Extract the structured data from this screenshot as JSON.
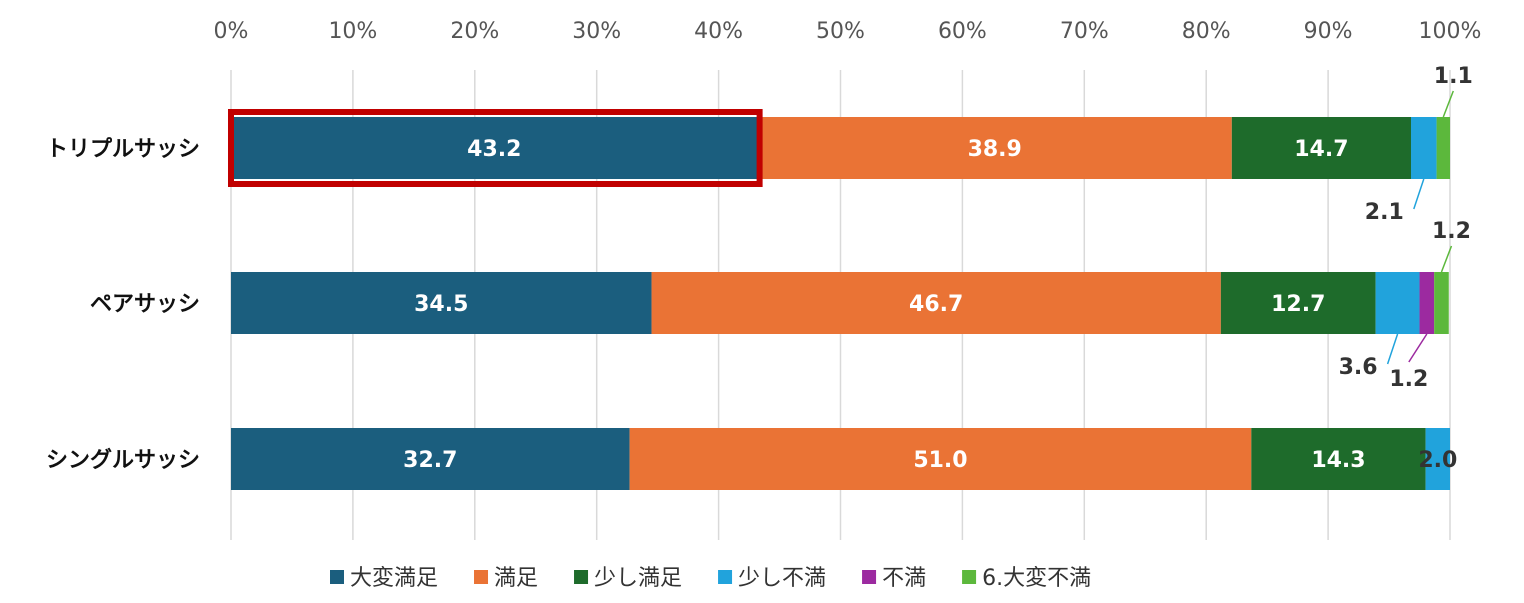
{
  "chart_data": {
    "type": "bar",
    "orientation": "horizontal",
    "stacked": true,
    "categories": [
      "トリプルサッシ",
      "ペアサッシ",
      "シングルサッシ"
    ],
    "xlim": [
      0,
      100
    ],
    "x_ticks": [
      "0%",
      "10%",
      "20%",
      "30%",
      "40%",
      "50%",
      "60%",
      "70%",
      "80%",
      "90%",
      "100%"
    ],
    "x_tick_values": [
      0,
      10,
      20,
      30,
      40,
      50,
      60,
      70,
      80,
      90,
      100
    ],
    "grid": true,
    "legend_position": "bottom",
    "series": [
      {
        "name": "大変満足",
        "color": "#1b5e7e",
        "values": [
          43.2,
          34.5,
          32.7
        ],
        "labels": [
          "43.2",
          "34.5",
          "32.7"
        ]
      },
      {
        "name": "満足",
        "color": "#ea7335",
        "values": [
          38.9,
          46.7,
          51.0
        ],
        "labels": [
          "38.9",
          "46.7",
          "51.0"
        ]
      },
      {
        "name": "少し満足",
        "color": "#1e6b2b",
        "values": [
          14.7,
          12.7,
          14.3
        ],
        "labels": [
          "14.7",
          "12.7",
          "14.3"
        ]
      },
      {
        "name": "少し不満",
        "color": "#21a3dc",
        "values": [
          2.1,
          3.6,
          2.0
        ],
        "labels": [
          "2.1",
          "3.6",
          "2.0"
        ]
      },
      {
        "name": "不満",
        "color": "#9c2aa0",
        "values": [
          0,
          1.2,
          0
        ],
        "labels": [
          "",
          "1.2",
          ""
        ]
      },
      {
        "name": "6.大変不満",
        "color": "#5cb83c",
        "values": [
          1.1,
          1.2,
          0
        ],
        "labels": [
          "1.1",
          "1.2",
          ""
        ]
      }
    ],
    "highlight": {
      "category": "トリプルサッシ",
      "series": "大変満足",
      "color": "#c00000"
    }
  }
}
